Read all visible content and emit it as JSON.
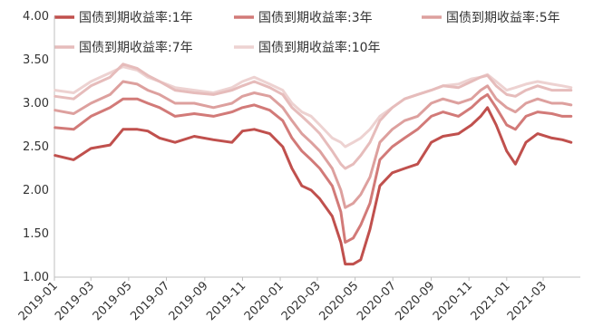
{
  "chart_data": {
    "type": "line",
    "title": "",
    "xlabel": "",
    "ylabel": "",
    "ylim": [
      1.0,
      4.0
    ],
    "yticks": [
      "1.00",
      "1.50",
      "2.00",
      "2.50",
      "3.00",
      "3.50",
      "4.00"
    ],
    "xticks": [
      "2019-01",
      "2019-03",
      "2019-05",
      "2019-07",
      "2019-09",
      "2019-11",
      "2020-01",
      "2020-03",
      "2020-05",
      "2020-07",
      "2020-09",
      "2020-11",
      "2021-01",
      "2021-03"
    ],
    "grid": false,
    "legend_position": "top",
    "x": [
      "2019-01-02",
      "2019-02-01",
      "2019-03-01",
      "2019-04-01",
      "2019-04-22",
      "2019-05-15",
      "2019-06-01",
      "2019-06-20",
      "2019-07-15",
      "2019-08-15",
      "2019-09-15",
      "2019-10-15",
      "2019-11-01",
      "2019-11-20",
      "2019-12-15",
      "2020-01-05",
      "2020-01-20",
      "2020-02-05",
      "2020-02-20",
      "2020-03-05",
      "2020-03-25",
      "2020-04-08",
      "2020-04-15",
      "2020-04-28",
      "2020-05-10",
      "2020-05-25",
      "2020-06-10",
      "2020-06-30",
      "2020-07-20",
      "2020-08-10",
      "2020-09-01",
      "2020-09-20",
      "2020-10-15",
      "2020-11-05",
      "2020-11-20",
      "2020-12-01",
      "2020-12-15",
      "2021-01-01",
      "2021-01-15",
      "2021-02-01",
      "2021-02-20",
      "2021-03-15",
      "2021-04-01",
      "2021-04-15"
    ],
    "series": [
      {
        "name": "国债到期收益率:1年",
        "color": "#c0504d",
        "values": [
          2.4,
          2.35,
          2.48,
          2.52,
          2.7,
          2.7,
          2.68,
          2.6,
          2.55,
          2.62,
          2.58,
          2.55,
          2.68,
          2.7,
          2.65,
          2.5,
          2.25,
          2.05,
          2.0,
          1.9,
          1.7,
          1.4,
          1.15,
          1.15,
          1.2,
          1.55,
          2.05,
          2.2,
          2.25,
          2.3,
          2.55,
          2.62,
          2.65,
          2.75,
          2.85,
          2.95,
          2.75,
          2.45,
          2.3,
          2.55,
          2.65,
          2.6,
          2.58,
          2.55
        ]
      },
      {
        "name": "国债到期收益率:3年",
        "color": "#d27a78",
        "values": [
          2.72,
          2.7,
          2.85,
          2.95,
          3.05,
          3.05,
          3.0,
          2.95,
          2.85,
          2.88,
          2.85,
          2.9,
          2.95,
          2.98,
          2.92,
          2.8,
          2.6,
          2.45,
          2.35,
          2.25,
          2.05,
          1.75,
          1.4,
          1.45,
          1.6,
          1.85,
          2.35,
          2.5,
          2.6,
          2.7,
          2.85,
          2.9,
          2.85,
          2.95,
          3.05,
          3.1,
          2.95,
          2.75,
          2.7,
          2.85,
          2.9,
          2.88,
          2.85,
          2.85
        ]
      },
      {
        "name": "国债到期收益率:5年",
        "color": "#dda09e",
        "values": [
          2.92,
          2.88,
          3.0,
          3.1,
          3.25,
          3.22,
          3.15,
          3.1,
          3.0,
          3.0,
          2.95,
          3.0,
          3.08,
          3.12,
          3.08,
          2.95,
          2.8,
          2.65,
          2.55,
          2.45,
          2.25,
          2.0,
          1.8,
          1.85,
          1.95,
          2.15,
          2.55,
          2.7,
          2.8,
          2.85,
          3.0,
          3.05,
          3.0,
          3.05,
          3.15,
          3.2,
          3.05,
          2.95,
          2.9,
          3.0,
          3.05,
          3.0,
          3.0,
          2.98
        ]
      },
      {
        "name": "国债到期收益率:7年",
        "color": "#e6bcbb",
        "values": [
          3.08,
          3.05,
          3.2,
          3.3,
          3.45,
          3.4,
          3.32,
          3.25,
          3.15,
          3.12,
          3.1,
          3.15,
          3.2,
          3.25,
          3.18,
          3.1,
          2.95,
          2.85,
          2.75,
          2.65,
          2.45,
          2.3,
          2.25,
          2.3,
          2.4,
          2.55,
          2.8,
          2.95,
          3.05,
          3.1,
          3.15,
          3.2,
          3.18,
          3.25,
          3.3,
          3.32,
          3.2,
          3.1,
          3.08,
          3.15,
          3.2,
          3.15,
          3.15,
          3.15
        ]
      },
      {
        "name": "国债到期收益率:10年",
        "color": "#edd2d1",
        "values": [
          3.15,
          3.12,
          3.25,
          3.35,
          3.42,
          3.38,
          3.3,
          3.25,
          3.18,
          3.15,
          3.12,
          3.18,
          3.25,
          3.3,
          3.22,
          3.15,
          3.0,
          2.9,
          2.85,
          2.75,
          2.6,
          2.55,
          2.5,
          2.55,
          2.6,
          2.7,
          2.85,
          2.95,
          3.05,
          3.1,
          3.15,
          3.2,
          3.22,
          3.28,
          3.3,
          3.33,
          3.25,
          3.15,
          3.18,
          3.22,
          3.25,
          3.22,
          3.2,
          3.18
        ]
      }
    ]
  }
}
